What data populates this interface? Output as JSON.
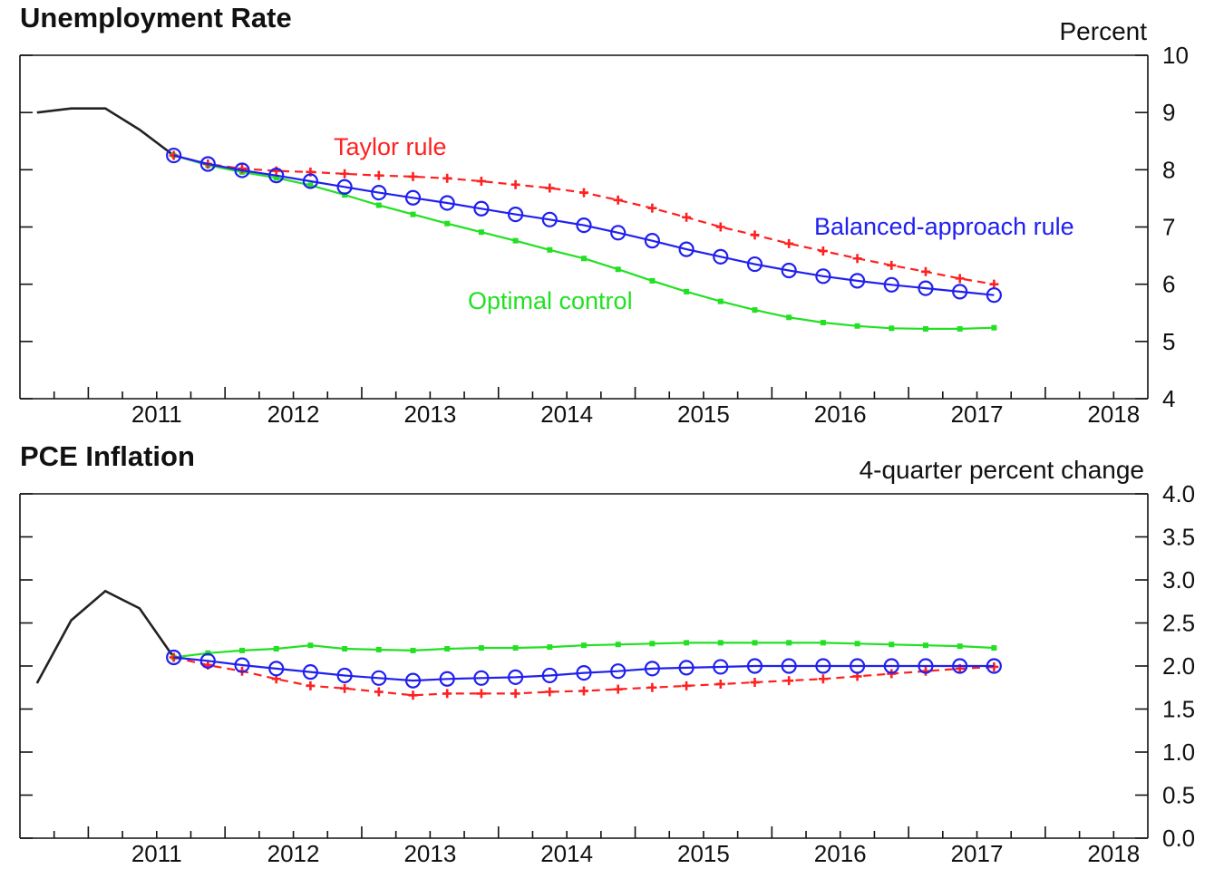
{
  "chart_data": [
    {
      "type": "line",
      "title": "Unemployment Rate",
      "ylabel": "Percent",
      "xlabel": "",
      "x_tick_labels": [
        "2011",
        "2012",
        "2013",
        "2014",
        "2015",
        "2016",
        "2017",
        "2018"
      ],
      "y_ticks": [
        "4",
        "5",
        "6",
        "7",
        "8",
        "9",
        "10"
      ],
      "ylim": [
        4,
        10
      ],
      "xlim": [
        2010.5,
        2018.75
      ],
      "grid": false,
      "series": [
        {
          "key": "history",
          "color": "#222222",
          "marker": "none",
          "dash": "solid",
          "x": [
            2010.625,
            2010.875,
            2011.125,
            2011.375,
            2011.625
          ],
          "values": [
            9.0,
            9.07,
            9.07,
            8.7,
            8.25
          ]
        },
        {
          "key": "taylor",
          "name": "Taylor rule",
          "color": "#ff2020",
          "marker": "plus",
          "dash": "dashed",
          "x": [
            2011.625,
            2011.875,
            2012.125,
            2012.375,
            2012.625,
            2012.875,
            2013.125,
            2013.375,
            2013.625,
            2013.875,
            2014.125,
            2014.375,
            2014.625,
            2014.875,
            2015.125,
            2015.375,
            2015.625,
            2015.875,
            2016.125,
            2016.375,
            2016.625,
            2016.875,
            2017.125,
            2017.375,
            2017.625
          ],
          "values": [
            8.25,
            8.1,
            8.02,
            7.98,
            7.96,
            7.93,
            7.9,
            7.88,
            7.85,
            7.8,
            7.74,
            7.68,
            7.6,
            7.47,
            7.33,
            7.17,
            7.0,
            6.86,
            6.71,
            6.58,
            6.45,
            6.33,
            6.22,
            6.1,
            6.0
          ]
        },
        {
          "key": "balanced",
          "name": "Balanced-approach rule",
          "color": "#2020f0",
          "marker": "circle",
          "dash": "solid",
          "x": [
            2011.625,
            2011.875,
            2012.125,
            2012.375,
            2012.625,
            2012.875,
            2013.125,
            2013.375,
            2013.625,
            2013.875,
            2014.125,
            2014.375,
            2014.625,
            2014.875,
            2015.125,
            2015.375,
            2015.625,
            2015.875,
            2016.125,
            2016.375,
            2016.625,
            2016.875,
            2017.125,
            2017.375,
            2017.625
          ],
          "values": [
            8.25,
            8.1,
            7.99,
            7.9,
            7.8,
            7.7,
            7.6,
            7.51,
            7.42,
            7.32,
            7.22,
            7.13,
            7.03,
            6.9,
            6.76,
            6.61,
            6.48,
            6.35,
            6.24,
            6.14,
            6.06,
            5.99,
            5.93,
            5.87,
            5.81
          ]
        },
        {
          "key": "optimal",
          "name": "Optimal control",
          "color": "#22e022",
          "marker": "dot",
          "dash": "solid",
          "x": [
            2011.625,
            2011.875,
            2012.125,
            2012.375,
            2012.625,
            2012.875,
            2013.125,
            2013.375,
            2013.625,
            2013.875,
            2014.125,
            2014.375,
            2014.625,
            2014.875,
            2015.125,
            2015.375,
            2015.625,
            2015.875,
            2016.125,
            2016.375,
            2016.625,
            2016.875,
            2017.125,
            2017.375,
            2017.625
          ],
          "values": [
            8.25,
            8.08,
            7.96,
            7.86,
            7.73,
            7.56,
            7.38,
            7.22,
            7.06,
            6.91,
            6.76,
            6.6,
            6.45,
            6.26,
            6.06,
            5.87,
            5.7,
            5.55,
            5.42,
            5.33,
            5.27,
            5.23,
            5.22,
            5.22,
            5.24
          ]
        }
      ],
      "annotations": [
        "Taylor rule",
        "Balanced-approach rule",
        "Optimal control"
      ]
    },
    {
      "type": "line",
      "title": "PCE Inflation",
      "ylabel": "4-quarter percent change",
      "xlabel": "",
      "x_tick_labels": [
        "2011",
        "2012",
        "2013",
        "2014",
        "2015",
        "2016",
        "2017",
        "2018"
      ],
      "y_ticks": [
        "0.0",
        "0.5",
        "1.0",
        "1.5",
        "2.0",
        "2.5",
        "3.0",
        "3.5",
        "4.0"
      ],
      "ylim": [
        0,
        4
      ],
      "xlim": [
        2010.5,
        2018.75
      ],
      "grid": false,
      "series": [
        {
          "key": "history",
          "color": "#222222",
          "marker": "none",
          "dash": "solid",
          "x": [
            2010.625,
            2010.875,
            2011.125,
            2011.375,
            2011.625
          ],
          "values": [
            1.8,
            2.53,
            2.87,
            2.67,
            2.1
          ]
        },
        {
          "key": "taylor",
          "name": "Taylor rule",
          "color": "#ff2020",
          "marker": "plus",
          "dash": "dashed",
          "x": [
            2011.625,
            2011.875,
            2012.125,
            2012.375,
            2012.625,
            2012.875,
            2013.125,
            2013.375,
            2013.625,
            2013.875,
            2014.125,
            2014.375,
            2014.625,
            2014.875,
            2015.125,
            2015.375,
            2015.625,
            2015.875,
            2016.125,
            2016.375,
            2016.625,
            2016.875,
            2017.125,
            2017.375,
            2017.625
          ],
          "values": [
            2.1,
            2.01,
            1.94,
            1.85,
            1.77,
            1.74,
            1.7,
            1.66,
            1.68,
            1.68,
            1.68,
            1.7,
            1.71,
            1.73,
            1.75,
            1.77,
            1.79,
            1.81,
            1.83,
            1.85,
            1.88,
            1.91,
            1.94,
            1.97,
            1.99
          ]
        },
        {
          "key": "balanced",
          "name": "Balanced-approach rule",
          "color": "#2020f0",
          "marker": "circle",
          "dash": "solid",
          "x": [
            2011.625,
            2011.875,
            2012.125,
            2012.375,
            2012.625,
            2012.875,
            2013.125,
            2013.375,
            2013.625,
            2013.875,
            2014.125,
            2014.375,
            2014.625,
            2014.875,
            2015.125,
            2015.375,
            2015.625,
            2015.875,
            2016.125,
            2016.375,
            2016.625,
            2016.875,
            2017.125,
            2017.375,
            2017.625
          ],
          "values": [
            2.1,
            2.06,
            2.01,
            1.97,
            1.93,
            1.89,
            1.86,
            1.83,
            1.85,
            1.86,
            1.87,
            1.89,
            1.92,
            1.94,
            1.97,
            1.98,
            1.99,
            2.0,
            2.0,
            2.0,
            2.0,
            2.0,
            2.0,
            2.0,
            2.0
          ]
        },
        {
          "key": "optimal",
          "name": "Optimal control",
          "color": "#22e022",
          "marker": "dot",
          "dash": "solid",
          "x": [
            2011.625,
            2011.875,
            2012.125,
            2012.375,
            2012.625,
            2012.875,
            2013.125,
            2013.375,
            2013.625,
            2013.875,
            2014.125,
            2014.375,
            2014.625,
            2014.875,
            2015.125,
            2015.375,
            2015.625,
            2015.875,
            2016.125,
            2016.375,
            2016.625,
            2016.875,
            2017.125,
            2017.375,
            2017.625
          ],
          "values": [
            2.1,
            2.15,
            2.18,
            2.2,
            2.24,
            2.2,
            2.19,
            2.18,
            2.2,
            2.21,
            2.21,
            2.22,
            2.24,
            2.25,
            2.26,
            2.27,
            2.27,
            2.27,
            2.27,
            2.27,
            2.26,
            2.25,
            2.24,
            2.23,
            2.21
          ]
        }
      ],
      "annotations": []
    }
  ]
}
